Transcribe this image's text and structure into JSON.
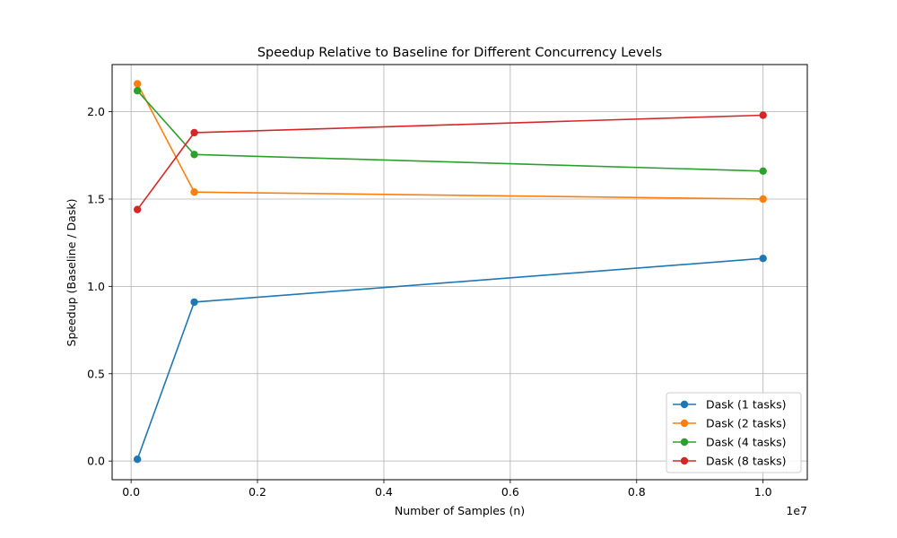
{
  "chart_data": {
    "type": "line",
    "title": "Speedup Relative to Baseline for Different Concurrency Levels",
    "xlabel": "Number of Samples (n)",
    "ylabel": "Speedup (Baseline / Dask)",
    "x_offset_label": "1e7",
    "x_scale_factor": 10000000,
    "xlim": [
      -300000,
      10700000
    ],
    "ylim": [
      -0.107,
      2.27
    ],
    "x_ticks": [
      0,
      2000000,
      4000000,
      6000000,
      8000000,
      10000000
    ],
    "x_tick_labels": [
      "0.0",
      "0.2",
      "0.4",
      "0.6",
      "0.8",
      "1.0"
    ],
    "y_ticks": [
      0,
      0.5,
      1.0,
      1.5,
      2.0
    ],
    "y_tick_labels": [
      "0.0",
      "0.5",
      "1.0",
      "1.5",
      "2.0"
    ],
    "grid": true,
    "legend_position": "bottom-right",
    "marker": "circle",
    "x": [
      100000,
      1000000,
      10000000
    ],
    "series": [
      {
        "name": "Dask (1 tasks)",
        "color": "#1f77b4",
        "values": [
          0.01,
          0.91,
          1.16
        ]
      },
      {
        "name": "Dask (2 tasks)",
        "color": "#ff7f0e",
        "values": [
          2.16,
          1.54,
          1.5
        ]
      },
      {
        "name": "Dask (4 tasks)",
        "color": "#2ca02c",
        "values": [
          2.12,
          1.755,
          1.66
        ]
      },
      {
        "name": "Dask (8 tasks)",
        "color": "#d62728",
        "values": [
          1.44,
          1.88,
          1.98
        ]
      }
    ]
  }
}
